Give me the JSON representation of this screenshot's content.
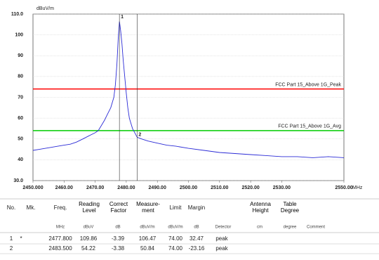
{
  "chart_data": {
    "type": "line",
    "y_label": "dBuV/m",
    "x_label": "MHz",
    "xlim": [
      2450,
      2550
    ],
    "ylim": [
      30,
      110
    ],
    "xticks": [
      {
        "value": 2450,
        "label": "2450.000"
      },
      {
        "value": 2460,
        "label": "2460.00"
      },
      {
        "value": 2470,
        "label": "2470.00"
      },
      {
        "value": 2480,
        "label": "2480.00"
      },
      {
        "value": 2490,
        "label": "2490.00"
      },
      {
        "value": 2500,
        "label": "2500.00"
      },
      {
        "value": 2510,
        "label": "2510.00"
      },
      {
        "value": 2520,
        "label": "2520.00"
      },
      {
        "value": 2530,
        "label": "2530.00"
      },
      {
        "value": 2550,
        "label": "2550.00"
      }
    ],
    "yticks": [
      {
        "value": 30,
        "label": "30.0"
      },
      40,
      50,
      60,
      70,
      80,
      90,
      100,
      {
        "value": 110,
        "label": "110.0"
      }
    ],
    "grid": true,
    "x": [
      2450,
      2452,
      2454,
      2456,
      2458,
      2460,
      2462,
      2464,
      2466,
      2468,
      2470,
      2471,
      2472,
      2473,
      2474,
      2475,
      2476,
      2476.5,
      2477,
      2477.4,
      2477.8,
      2478.2,
      2478.6,
      2479,
      2479.5,
      2480,
      2480.5,
      2481,
      2482,
      2483.5,
      2485,
      2487,
      2490,
      2493,
      2496,
      2500,
      2505,
      2510,
      2515,
      2520,
      2525,
      2530,
      2535,
      2540,
      2545,
      2550
    ],
    "series": [
      {
        "color": "#2b2bd6",
        "values": [
          44.5,
          45,
          45.5,
          46,
          46.5,
          47,
          47.5,
          48.5,
          50,
          51.5,
          53,
          54,
          56.5,
          59,
          62,
          65,
          70,
          76,
          86,
          98,
          106.47,
          102,
          96,
          88,
          80,
          72,
          65,
          60,
          55,
          50.84,
          50,
          49,
          48,
          47,
          46.5,
          45.5,
          44.5,
          43.5,
          43,
          42.5,
          42,
          41.5,
          41.5,
          41,
          41.5,
          41
        ]
      }
    ],
    "limits": [
      {
        "name": "FCC Part 15_Above 1G_Peak",
        "value": 74,
        "color": "#ff0000"
      },
      {
        "name": "FCC Part 15_Above 1G_Avg",
        "value": 54,
        "color": "#00cc00"
      }
    ],
    "markers": [
      {
        "label": "1",
        "x": 2477.8
      },
      {
        "label": "2",
        "x": 2483.5
      }
    ]
  },
  "table": {
    "header": [
      "No.",
      "Mk.",
      "Freq.",
      "Reading Level",
      "Correct Factor",
      "Measure-ment",
      "Limit",
      "Margin",
      "Antenna Height",
      "Table Degree"
    ],
    "units": [
      "MHz",
      "dBuV",
      "dB",
      "dBuV/m",
      "dBuV/m",
      "dB",
      "Detector",
      "cm",
      "degree",
      "Comment"
    ],
    "rows": [
      [
        "1",
        "*",
        "2477.800",
        "109.86",
        "-3.39",
        "106.47",
        "74.00",
        "32.47",
        "peak"
      ],
      [
        "2",
        "2483.500",
        "54.22",
        "-3.38",
        "50.84",
        "74.00",
        "-23.16",
        "peak"
      ]
    ]
  }
}
